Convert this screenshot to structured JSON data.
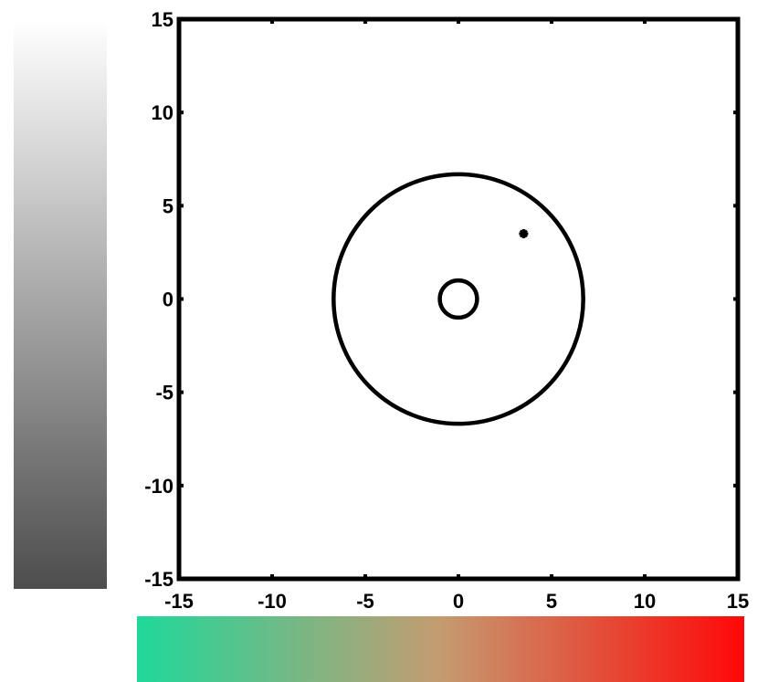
{
  "chart_data": {
    "type": "line",
    "title": "",
    "xlabel": "",
    "ylabel": "",
    "xlim": [
      -15,
      15
    ],
    "ylim": [
      -15,
      15
    ],
    "xticks": [
      -15,
      -10,
      -5,
      0,
      5,
      10,
      15
    ],
    "yticks": [
      -15,
      -10,
      -5,
      0,
      5,
      10,
      15
    ],
    "xtick_labels": [
      "-15",
      "-10",
      "-5",
      "0",
      "5",
      "10",
      "15"
    ],
    "ytick_labels": [
      "-15",
      "-10",
      "-5",
      "0",
      "5",
      "10",
      "15"
    ],
    "grid": false,
    "shapes": [
      {
        "name": "outer-circle",
        "kind": "circle",
        "center": [
          0,
          0
        ],
        "radius": 6.7
      },
      {
        "name": "inner-circle",
        "kind": "circle",
        "center": [
          0,
          0
        ],
        "radius": 1.0
      }
    ],
    "points": [
      {
        "x": 3.5,
        "y": 3.5,
        "marker": "*"
      }
    ],
    "line_color": "#000000",
    "colorbars": [
      {
        "orientation": "vertical",
        "from_color": "#ffffff",
        "to_color": "#4d4d4d"
      },
      {
        "orientation": "horizontal",
        "stops": [
          "#1fd89b",
          "#c59b70",
          "#ff0808"
        ]
      }
    ]
  }
}
